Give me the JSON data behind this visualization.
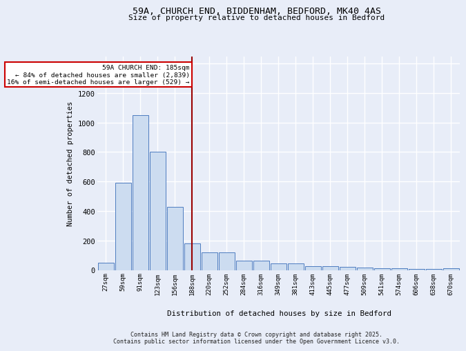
{
  "title_line1": "59A, CHURCH END, BIDDENHAM, BEDFORD, MK40 4AS",
  "title_line2": "Size of property relative to detached houses in Bedford",
  "xlabel": "Distribution of detached houses by size in Bedford",
  "ylabel": "Number of detached properties",
  "bar_labels": [
    "27sqm",
    "59sqm",
    "91sqm",
    "123sqm",
    "156sqm",
    "188sqm",
    "220sqm",
    "252sqm",
    "284sqm",
    "316sqm",
    "349sqm",
    "381sqm",
    "413sqm",
    "445sqm",
    "477sqm",
    "509sqm",
    "541sqm",
    "574sqm",
    "606sqm",
    "638sqm",
    "670sqm"
  ],
  "bar_values": [
    50,
    590,
    1050,
    800,
    430,
    180,
    120,
    120,
    65,
    65,
    45,
    45,
    25,
    25,
    20,
    15,
    10,
    10,
    5,
    5,
    10
  ],
  "bar_color": "#ccdcf0",
  "bar_edge_color": "#4d7cc0",
  "vline_x_index": 5,
  "vline_color": "#990000",
  "annotation_text": "59A CHURCH END: 185sqm\n← 84% of detached houses are smaller (2,839)\n16% of semi-detached houses are larger (529) →",
  "annotation_box_facecolor": "#ffffff",
  "annotation_box_edgecolor": "#cc0000",
  "ylim": [
    0,
    1450
  ],
  "yticks": [
    0,
    200,
    400,
    600,
    800,
    1000,
    1200,
    1400
  ],
  "background_color": "#e8edf8",
  "grid_color": "#ffffff",
  "footer_text": "Contains HM Land Registry data © Crown copyright and database right 2025.\nContains public sector information licensed under the Open Government Licence v3.0."
}
